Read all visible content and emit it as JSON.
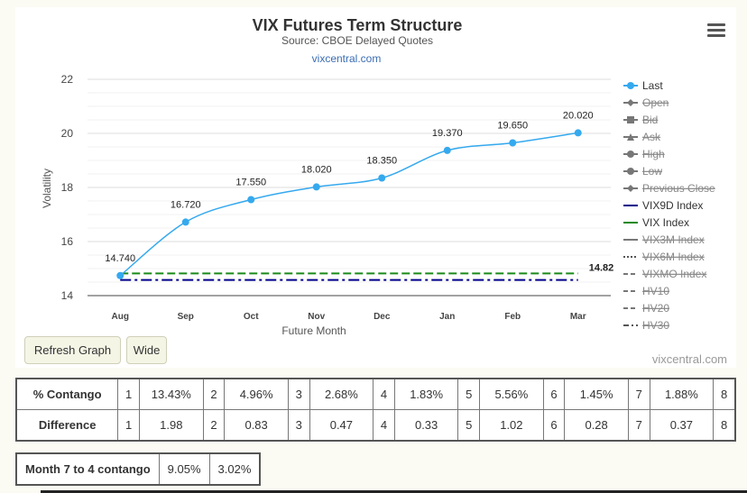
{
  "chart_data": {
    "type": "line",
    "title": "VIX Futures Term Structure",
    "subtitle": "Source: CBOE Delayed Quotes",
    "link": "vixcentral.com",
    "credits": "vixcentral.com",
    "xlabel": "Future Month",
    "ylabel": "Volatility",
    "categories": [
      "Aug",
      "Sep",
      "Oct",
      "Nov",
      "Dec",
      "Jan",
      "Feb",
      "Mar"
    ],
    "ylim": [
      14,
      22
    ],
    "yticks": [
      "14",
      "16",
      "18",
      "20",
      "22"
    ],
    "grid": true,
    "legend_position": "right",
    "series": [
      {
        "name": "Last",
        "values": [
          14.74,
          16.72,
          17.55,
          18.02,
          18.35,
          19.37,
          19.65,
          20.02
        ],
        "labels": [
          "14.740",
          "16.720",
          "17.550",
          "18.020",
          "18.350",
          "19.370",
          "19.650",
          "20.020"
        ],
        "color": "#35a9ee"
      },
      {
        "name": "VIX Index",
        "value": 14.82,
        "label": "14.82",
        "color": "#1a8a1a",
        "style": "dash"
      },
      {
        "name": "VIX9D Index",
        "value": 14.58,
        "color": "#00008b",
        "style": "dashdot"
      }
    ]
  },
  "legend": [
    {
      "name": "Last",
      "marker": "circle",
      "color": "#35a9ee",
      "visible": true
    },
    {
      "name": "Open",
      "marker": "diamond",
      "color": "#777777",
      "visible": false
    },
    {
      "name": "Bid",
      "marker": "square",
      "color": "#777777",
      "visible": false
    },
    {
      "name": "Ask",
      "marker": "triangle",
      "color": "#777777",
      "visible": false
    },
    {
      "name": "High",
      "marker": "circle",
      "color": "#777777",
      "visible": false
    },
    {
      "name": "Low",
      "marker": "circle",
      "color": "#777777",
      "visible": false
    },
    {
      "name": "Previous Close",
      "marker": "diamond",
      "color": "#777777",
      "visible": false
    },
    {
      "name": "VIX9D Index",
      "marker": "solid",
      "color": "#00008b",
      "visible": true
    },
    {
      "name": "VIX Index",
      "marker": "solid",
      "color": "#1a8a1a",
      "visible": true
    },
    {
      "name": "VIX3M Index",
      "marker": "solid",
      "color": "#777777",
      "visible": false
    },
    {
      "name": "VIX6M Index",
      "marker": "dotted",
      "color": "#555555",
      "visible": false
    },
    {
      "name": "VIXMO Index",
      "marker": "dashed",
      "color": "#777777",
      "visible": false
    },
    {
      "name": "HV10",
      "marker": "dashed",
      "color": "#777777",
      "visible": false
    },
    {
      "name": "HV20",
      "marker": "dashed",
      "color": "#777777",
      "visible": false
    },
    {
      "name": "HV30",
      "marker": "dashdot",
      "color": "#555555",
      "visible": false
    }
  ],
  "buttons": {
    "refresh": "Refresh Graph",
    "wide": "Wide"
  },
  "menu_icon": "hamburger-menu-icon",
  "contango_table": {
    "rows": [
      {
        "label": "% Contango",
        "cells": [
          "1",
          "13.43%",
          "2",
          "4.96%",
          "3",
          "2.68%",
          "4",
          "1.83%",
          "5",
          "5.56%",
          "6",
          "1.45%",
          "7",
          "1.88%",
          "8"
        ]
      },
      {
        "label": "Difference",
        "cells": [
          "1",
          "1.98",
          "2",
          "0.83",
          "3",
          "0.47",
          "4",
          "0.33",
          "5",
          "1.02",
          "6",
          "0.28",
          "7",
          "0.37",
          "8"
        ]
      }
    ]
  },
  "summary_table": {
    "label": "Month 7 to 4 contango",
    "values": [
      "9.05%",
      "3.02%"
    ]
  }
}
